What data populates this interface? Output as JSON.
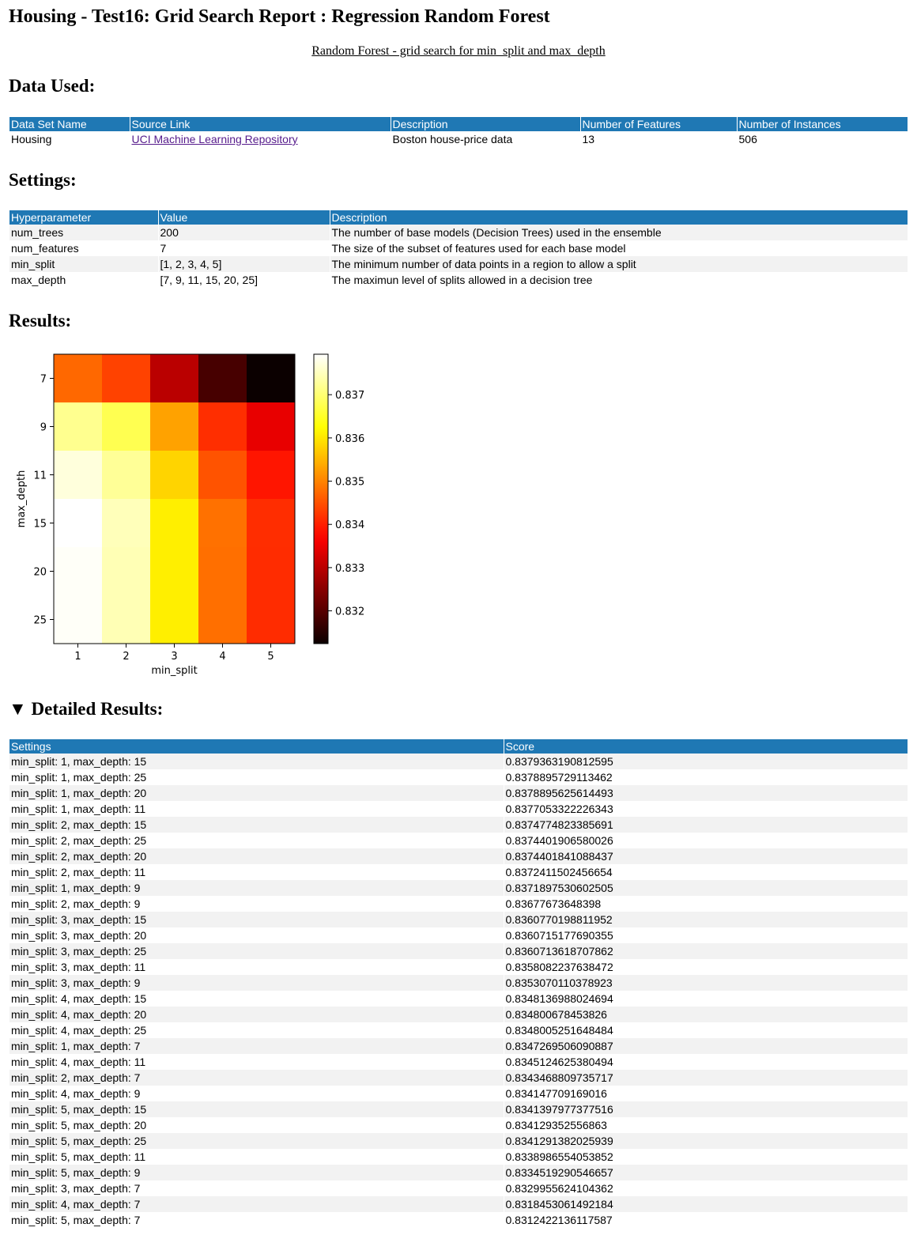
{
  "page": {
    "title": "Housing - Test16: Grid Search Report : Regression Random Forest",
    "subtitle": "Random Forest - grid search for min_split and max_depth"
  },
  "data_used": {
    "heading": "Data Used:",
    "columns": [
      "Data Set Name",
      "Source Link",
      "Description",
      "Number of Features",
      "Number of Instances"
    ],
    "row": {
      "name": "Housing",
      "source_link": "UCI Machine Learning Repository",
      "description": "Boston house-price data",
      "num_features": "13",
      "num_instances": "506"
    }
  },
  "settings": {
    "heading": "Settings:",
    "columns": [
      "Hyperparameter",
      "Value",
      "Description"
    ],
    "rows": [
      [
        "num_trees",
        "200",
        "The number of base models (Decision Trees) used in the ensemble"
      ],
      [
        "num_features",
        "7",
        "The size of the subset of features used for each base model"
      ],
      [
        "min_split",
        "[1, 2, 3, 4, 5]",
        "The minimum number of data points in a region to allow a split"
      ],
      [
        "max_depth",
        "[7, 9, 11, 15, 20, 25]",
        "The maximun level of splits allowed in a decision tree"
      ]
    ]
  },
  "results": {
    "heading": "Results:"
  },
  "chart_data": {
    "type": "heatmap",
    "xlabel": "min_split",
    "ylabel": "max_depth",
    "x": [
      "1",
      "2",
      "3",
      "4",
      "5"
    ],
    "y": [
      "7",
      "9",
      "11",
      "15",
      "20",
      "25"
    ],
    "z": [
      [
        0.8347269506090887,
        0.8343468809735717,
        0.8329955624104362,
        0.8318453061492184,
        0.8312422136117587
      ],
      [
        0.8371897530602505,
        0.83677673648398,
        0.8353070110378923,
        0.834147709169016,
        0.8334519290546657
      ],
      [
        0.8377053322226343,
        0.8372411502456654,
        0.8358082237638472,
        0.8345124625380494,
        0.8338986554053852
      ],
      [
        0.8379363190812595,
        0.8374774823385691,
        0.8360770198811952,
        0.8348136988024694,
        0.8341397977377516
      ],
      [
        0.8378895625614493,
        0.8374401841088437,
        0.8360715177690355,
        0.834800678453826,
        0.834129352556863
      ],
      [
        0.8378895729113462,
        0.8374401906580026,
        0.8360713618707862,
        0.8348005251648484,
        0.8341291382025939
      ]
    ],
    "colormap": "hot",
    "colorbar": {
      "ticks": [
        "0.832",
        "0.833",
        "0.834",
        "0.835",
        "0.836",
        "0.837"
      ]
    }
  },
  "detailed": {
    "heading": "Detailed Results:",
    "toggle_icon": "▼",
    "columns": [
      "Settings",
      "Score"
    ],
    "rows": [
      [
        "min_split: 1, max_depth: 15",
        "0.8379363190812595"
      ],
      [
        "min_split: 1, max_depth: 25",
        "0.8378895729113462"
      ],
      [
        "min_split: 1, max_depth: 20",
        "0.8378895625614493"
      ],
      [
        "min_split: 1, max_depth: 11",
        "0.8377053322226343"
      ],
      [
        "min_split: 2, max_depth: 15",
        "0.8374774823385691"
      ],
      [
        "min_split: 2, max_depth: 25",
        "0.8374401906580026"
      ],
      [
        "min_split: 2, max_depth: 20",
        "0.8374401841088437"
      ],
      [
        "min_split: 2, max_depth: 11",
        "0.8372411502456654"
      ],
      [
        "min_split: 1, max_depth: 9",
        "0.8371897530602505"
      ],
      [
        "min_split: 2, max_depth: 9",
        "0.83677673648398"
      ],
      [
        "min_split: 3, max_depth: 15",
        "0.8360770198811952"
      ],
      [
        "min_split: 3, max_depth: 20",
        "0.8360715177690355"
      ],
      [
        "min_split: 3, max_depth: 25",
        "0.8360713618707862"
      ],
      [
        "min_split: 3, max_depth: 11",
        "0.8358082237638472"
      ],
      [
        "min_split: 3, max_depth: 9",
        "0.8353070110378923"
      ],
      [
        "min_split: 4, max_depth: 15",
        "0.8348136988024694"
      ],
      [
        "min_split: 4, max_depth: 20",
        "0.834800678453826"
      ],
      [
        "min_split: 4, max_depth: 25",
        "0.8348005251648484"
      ],
      [
        "min_split: 1, max_depth: 7",
        "0.8347269506090887"
      ],
      [
        "min_split: 4, max_depth: 11",
        "0.8345124625380494"
      ],
      [
        "min_split: 2, max_depth: 7",
        "0.8343468809735717"
      ],
      [
        "min_split: 4, max_depth: 9",
        "0.834147709169016"
      ],
      [
        "min_split: 5, max_depth: 15",
        "0.8341397977377516"
      ],
      [
        "min_split: 5, max_depth: 20",
        "0.834129352556863"
      ],
      [
        "min_split: 5, max_depth: 25",
        "0.8341291382025939"
      ],
      [
        "min_split: 5, max_depth: 11",
        "0.8338986554053852"
      ],
      [
        "min_split: 5, max_depth: 9",
        "0.8334519290546657"
      ],
      [
        "min_split: 3, max_depth: 7",
        "0.8329955624104362"
      ],
      [
        "min_split: 4, max_depth: 7",
        "0.8318453061492184"
      ],
      [
        "min_split: 5, max_depth: 7",
        "0.8312422136117587"
      ]
    ]
  }
}
